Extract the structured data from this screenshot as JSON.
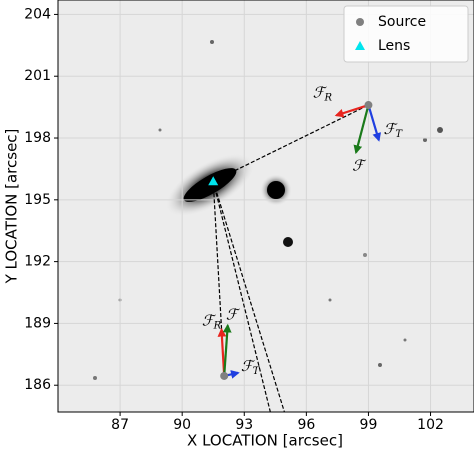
{
  "chart_data": {
    "type": "scatter",
    "xlabel": "X LOCATION [arcsec]",
    "ylabel": "Y LOCATION [arcsec]",
    "xlim": [
      84,
      104.1
    ],
    "ylim": [
      184.7,
      204.7
    ],
    "xticks": [
      87,
      90,
      93,
      96,
      99,
      102
    ],
    "yticks": [
      186,
      189,
      192,
      195,
      198,
      201,
      204
    ],
    "grid": true,
    "legend": "upper right",
    "series": [
      {
        "name": "Source",
        "color": "#808080",
        "marker": "circle",
        "x": [
          99,
          92.03
        ],
        "y": [
          199.6,
          186.45
        ]
      },
      {
        "name": "Lens",
        "color": "#00e5ee",
        "marker": "triangle",
        "x": [
          91.5
        ],
        "y": [
          195.9
        ]
      }
    ],
    "lines": [
      {
        "x": [
          91.5,
          99
        ],
        "y": [
          195.9,
          199.6
        ]
      },
      {
        "x": [
          91.5,
          92.03
        ],
        "y": [
          195.9,
          186.45
        ]
      },
      {
        "x": [
          91.5,
          94.26
        ],
        "y": [
          195.9,
          184.7
        ]
      },
      {
        "x": [
          91.5,
          94.94
        ],
        "y": [
          195.9,
          184.7
        ]
      }
    ],
    "arrows": [
      {
        "label": "ℱ",
        "sub": "R",
        "color": "#e8251f",
        "x": [
          99,
          97.45
        ],
        "y": [
          199.6,
          199.1
        ]
      },
      {
        "label": "ℱ",
        "sub": "T",
        "color": "#1f3fe0",
        "x": [
          99,
          99.5
        ],
        "y": [
          199.6,
          197.9
        ]
      },
      {
        "label": "ℱ",
        "color": "#1a7a1a",
        "x": [
          99,
          98.4
        ],
        "y": [
          199.6,
          197.3
        ]
      },
      {
        "label": "ℱ",
        "sub": "R",
        "color": "#e8251f",
        "x": [
          92.03,
          91.9
        ],
        "y": [
          186.45,
          188.7
        ]
      },
      {
        "label": "ℱ",
        "color": "#1a7a1a",
        "x": [
          92.03,
          92.2
        ],
        "y": [
          186.45,
          188.9
        ]
      },
      {
        "label": "ℱ",
        "sub": "T",
        "color": "#1f3fe0",
        "x": [
          92.03,
          92.7
        ],
        "y": [
          186.45,
          186.6
        ]
      }
    ]
  }
}
